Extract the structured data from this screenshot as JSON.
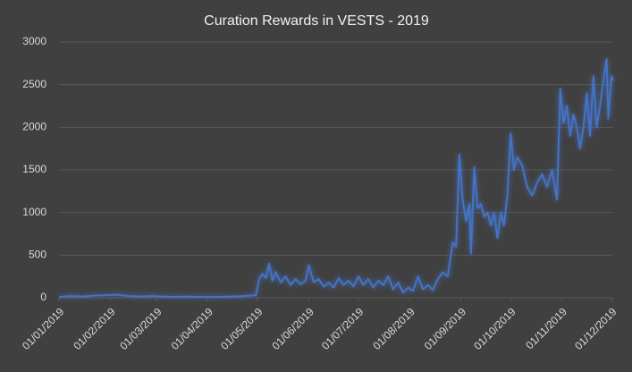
{
  "chart_data": {
    "type": "line",
    "title": "Curation Rewards in VESTS - 2019",
    "color": "#4472c4",
    "grid": true,
    "x": [
      "01/01/2019",
      "08/01/2019",
      "15/01/2019",
      "22/01/2019",
      "29/01/2019",
      "05/02/2019",
      "12/02/2019",
      "19/02/2019",
      "26/02/2019",
      "05/03/2019",
      "12/03/2019",
      "19/03/2019",
      "26/03/2019",
      "02/04/2019",
      "09/04/2019",
      "16/04/2019",
      "23/04/2019",
      "30/04/2019",
      "02/05/2019",
      "04/05/2019",
      "06/05/2019",
      "08/05/2019",
      "10/05/2019",
      "12/05/2019",
      "15/05/2019",
      "18/05/2019",
      "21/05/2019",
      "24/05/2019",
      "27/05/2019",
      "30/05/2019",
      "01/06/2019",
      "04/06/2019",
      "07/06/2019",
      "10/06/2019",
      "13/06/2019",
      "16/06/2019",
      "19/06/2019",
      "22/06/2019",
      "25/06/2019",
      "28/06/2019",
      "01/07/2019",
      "04/07/2019",
      "07/07/2019",
      "10/07/2019",
      "13/07/2019",
      "16/07/2019",
      "19/07/2019",
      "22/07/2019",
      "25/07/2019",
      "28/07/2019",
      "31/07/2019",
      "03/08/2019",
      "06/08/2019",
      "09/08/2019",
      "12/08/2019",
      "15/08/2019",
      "18/08/2019",
      "21/08/2019",
      "24/08/2019",
      "27/08/2019",
      "29/08/2019",
      "31/08/2019",
      "02/09/2019",
      "04/09/2019",
      "06/09/2019",
      "07/09/2019",
      "09/09/2019",
      "11/09/2019",
      "13/09/2019",
      "15/09/2019",
      "17/09/2019",
      "19/09/2019",
      "21/09/2019",
      "23/09/2019",
      "25/09/2019",
      "27/09/2019",
      "29/09/2019",
      "01/10/2019",
      "03/10/2019",
      "05/10/2019",
      "08/10/2019",
      "11/10/2019",
      "14/10/2019",
      "17/10/2019",
      "20/10/2019",
      "23/10/2019",
      "26/10/2019",
      "29/10/2019",
      "31/10/2019",
      "02/11/2019",
      "04/11/2019",
      "06/11/2019",
      "08/11/2019",
      "10/11/2019",
      "12/11/2019",
      "14/11/2019",
      "16/11/2019",
      "18/11/2019",
      "20/11/2019",
      "22/11/2019",
      "24/11/2019",
      "26/11/2019",
      "28/11/2019",
      "29/11/2019",
      "01/12/2019",
      "02/12/2019"
    ],
    "values": [
      10,
      20,
      15,
      25,
      30,
      35,
      20,
      15,
      20,
      15,
      10,
      15,
      10,
      12,
      10,
      15,
      20,
      30,
      220,
      280,
      230,
      400,
      200,
      300,
      180,
      250,
      150,
      220,
      160,
      200,
      380,
      180,
      220,
      130,
      180,
      120,
      230,
      150,
      200,
      130,
      250,
      150,
      220,
      120,
      200,
      150,
      250,
      100,
      180,
      60,
      120,
      80,
      250,
      100,
      150,
      90,
      220,
      300,
      250,
      650,
      600,
      1680,
      1150,
      900,
      1100,
      520,
      1530,
      1050,
      1100,
      950,
      1000,
      850,
      1000,
      700,
      1000,
      850,
      1200,
      1930,
      1500,
      1650,
      1550,
      1300,
      1200,
      1350,
      1450,
      1300,
      1500,
      1150,
      2450,
      2050,
      2250,
      1900,
      2150,
      2000,
      1750,
      2000,
      2400,
      1900,
      2600,
      2000,
      2250,
      2550,
      2800,
      2100,
      2600,
      2550
    ],
    "xlim": [
      "01/01/2019",
      "02/12/2019"
    ],
    "xticks": [
      "01/01/2019",
      "01/02/2019",
      "01/03/2019",
      "01/04/2019",
      "01/05/2019",
      "01/06/2019",
      "01/07/2019",
      "01/08/2019",
      "01/09/2019",
      "01/10/2019",
      "01/11/2019",
      "01/12/2019"
    ],
    "ylim": [
      0,
      3000
    ],
    "yticks": [
      0,
      500,
      1000,
      1500,
      2000,
      2500,
      3000
    ]
  }
}
